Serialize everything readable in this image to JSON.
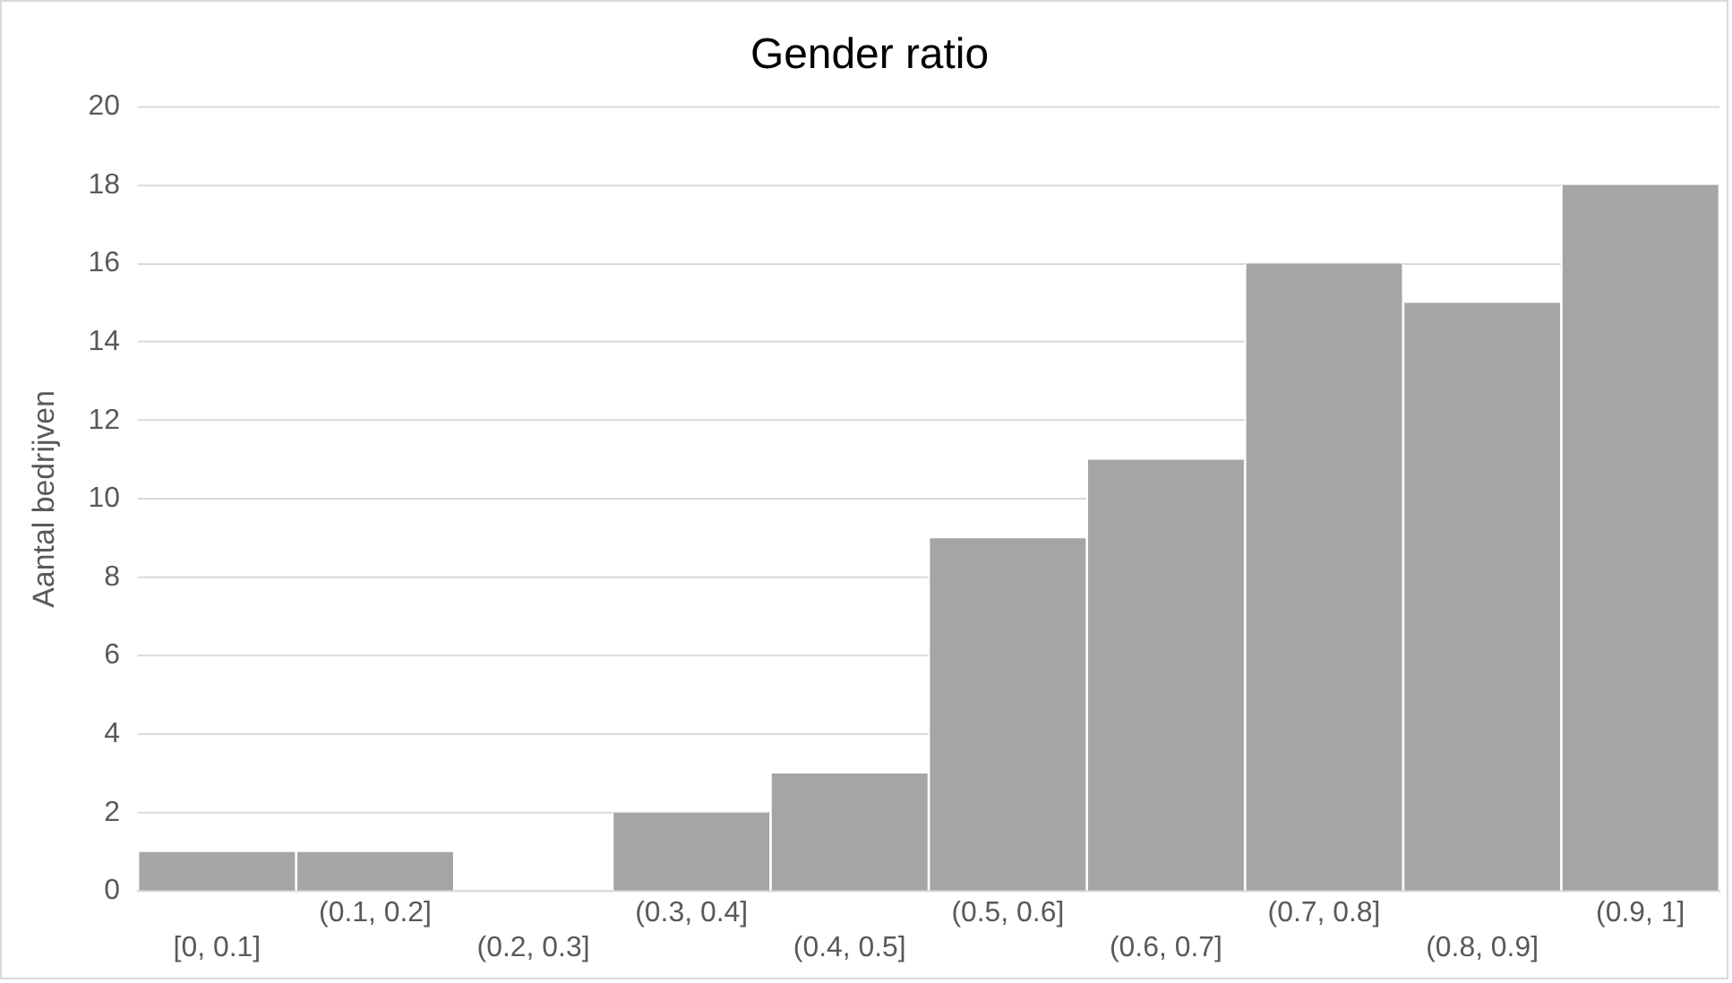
{
  "chart_data": {
    "type": "bar",
    "title": "Gender ratio",
    "ylabel": "Aantal bedrijven",
    "categories": [
      "[0, 0.1]",
      "(0.1, 0.2]",
      "(0.2, 0.3]",
      "(0.3, 0.4]",
      "(0.4, 0.5]",
      "(0.5, 0.6]",
      "(0.6, 0.7]",
      "(0.7, 0.8]",
      "(0.8, 0.9]",
      "(0.9, 1]"
    ],
    "values": [
      1,
      1,
      0,
      2,
      3,
      9,
      11,
      16,
      15,
      18
    ],
    "color": "#a5a5a5",
    "ylim": [
      0,
      20
    ],
    "yticks": [
      0,
      2,
      4,
      6,
      8,
      10,
      12,
      14,
      16,
      18,
      20
    ],
    "grid": "y"
  }
}
